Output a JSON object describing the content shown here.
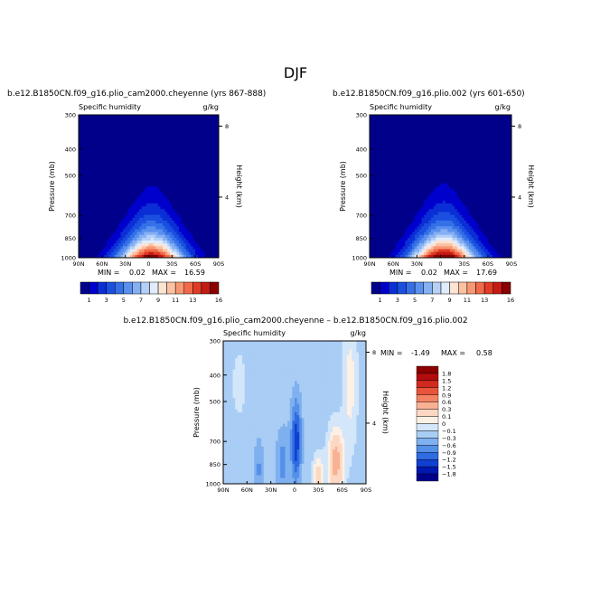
{
  "figure": {
    "season": "DJF"
  },
  "chart_data": [
    {
      "type": "heatmap",
      "case": "b.e12.B1850CN.f09_g16.plio_cam2000.cheyenne (yrs 867-888)",
      "variable": "Specific humidity",
      "units": "g/kg",
      "ylabel": "Pressure (mb)",
      "ylabel_right": "Height (km)",
      "x_ticks": [
        "90N",
        "60N",
        "30N",
        "0",
        "30S",
        "60S",
        "90S"
      ],
      "y_ticks": [
        "300",
        "400",
        "500",
        "700",
        "850",
        "1000"
      ],
      "y_ticks_right": [
        "8",
        "4"
      ],
      "min_label": "MIN =",
      "min_value": "0.02",
      "max_label": "MAX =",
      "max_value": "16.59",
      "ylim": [
        1000,
        300
      ],
      "contour_levels": [
        1,
        2,
        3,
        4,
        5,
        6,
        7,
        8,
        9,
        10,
        11,
        12,
        13,
        14,
        15,
        16
      ],
      "colorbar_labels": [
        "1",
        "3",
        "5",
        "7",
        "9",
        "11",
        "13",
        "16"
      ]
    },
    {
      "type": "heatmap",
      "case": "b.e12.B1850CN.f09_g16.plio.002 (yrs 601-650)",
      "variable": "Specific humidity",
      "units": "g/kg",
      "ylabel": "Pressure (mb)",
      "ylabel_right": "Height (km)",
      "x_ticks": [
        "90N",
        "60N",
        "30N",
        "0",
        "30S",
        "60S",
        "90S"
      ],
      "y_ticks": [
        "300",
        "400",
        "500",
        "700",
        "850",
        "1000"
      ],
      "y_ticks_right": [
        "8",
        "4"
      ],
      "min_label": "MIN =",
      "min_value": "0.02",
      "max_label": "MAX =",
      "max_value": "17.69",
      "ylim": [
        1000,
        300
      ],
      "contour_levels": [
        1,
        2,
        3,
        4,
        5,
        6,
        7,
        8,
        9,
        10,
        11,
        12,
        13,
        14,
        15,
        16
      ],
      "colorbar_labels": [
        "1",
        "3",
        "5",
        "7",
        "9",
        "11",
        "13",
        "16"
      ]
    },
    {
      "type": "heatmap",
      "case": "b.e12.B1850CN.f09_g16.plio_cam2000.cheyenne – b.e12.B1850CN.f09_g16.plio.002",
      "variable": "Specific humidity",
      "units": "g/kg",
      "ylabel": "Pressure (mb)",
      "ylabel_right": "Height (km)",
      "x_ticks": [
        "90N",
        "60N",
        "30N",
        "0",
        "30S",
        "60S",
        "90S"
      ],
      "y_ticks": [
        "300",
        "400",
        "500",
        "700",
        "850",
        "1000"
      ],
      "y_ticks_right": [
        "8",
        "4"
      ],
      "min_label": "MIN =",
      "min_value": "-1.49",
      "max_label": "MAX =",
      "max_value": "0.58",
      "ylim": [
        1000,
        300
      ],
      "contour_levels": [
        -1.8,
        -1.5,
        -1.2,
        -0.9,
        -0.6,
        -0.3,
        -0.1,
        0,
        0.1,
        0.3,
        0.6,
        0.9,
        1.2,
        1.5,
        1.8
      ],
      "colorbar_labels": [
        "1.8",
        "1.5",
        "1.2",
        "0.9",
        "0.6",
        "0.3",
        "0.1",
        "0",
        "−0.1",
        "−0.3",
        "−0.6",
        "−0.9",
        "−1.2",
        "−1.5",
        "−1.8"
      ]
    }
  ],
  "colors": {
    "seq": [
      "#00008b",
      "#0000cd",
      "#0a2fd6",
      "#1a4fe0",
      "#3570e6",
      "#5a90ee",
      "#86b0f3",
      "#b4d0f8",
      "#e0ecfc",
      "#fde3d2",
      "#fcc0a2",
      "#f89873",
      "#f06a49",
      "#e03c25",
      "#c31b12",
      "#8b0000"
    ],
    "diff": [
      "#8b0000",
      "#b30c0c",
      "#d22a1e",
      "#e8553a",
      "#f48363",
      "#f9b194",
      "#fcd8c3",
      "#fdf0e4",
      "#d3e6fa",
      "#a9cdf5",
      "#7fb0ef",
      "#5590e8",
      "#2f6ce0",
      "#1040d2",
      "#0017b0",
      "#00008b"
    ]
  }
}
